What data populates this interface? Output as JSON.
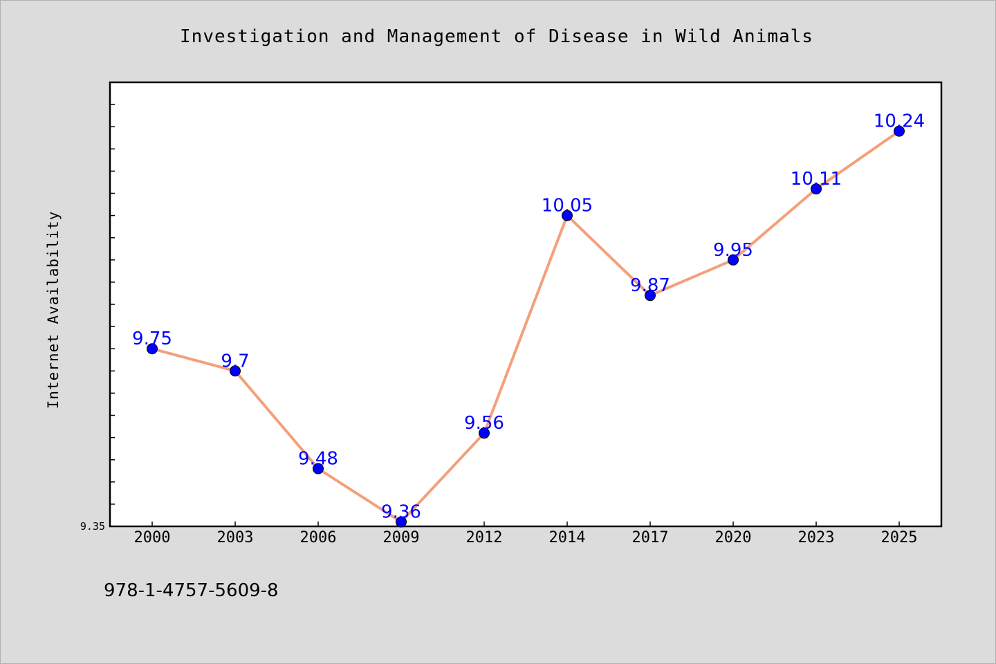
{
  "chart_data": {
    "type": "line",
    "title": "Investigation and Management of Disease in Wild Animals",
    "xlabel": "",
    "ylabel": "Internet Availability",
    "categories": [
      "2000",
      "2003",
      "2006",
      "2009",
      "2012",
      "2014",
      "2017",
      "2020",
      "2023",
      "2025"
    ],
    "series": [
      {
        "values": [
          9.75,
          9.7,
          9.48,
          9.36,
          9.56,
          10.05,
          9.87,
          9.95,
          10.11,
          10.24
        ],
        "labels": [
          "9.75",
          "9.7",
          "9.48",
          "9.36",
          "9.56",
          "10.05",
          "9.87",
          "9.95",
          "10.11",
          "10.24"
        ]
      }
    ],
    "ylim": [
      9.35,
      10.35
    ],
    "y_tick_labels": [
      "9.35"
    ],
    "grid": false,
    "legend": "none",
    "line_color": "#f4a07a",
    "marker_color": "#0000ff",
    "label_color": "#0000ff"
  },
  "footer": {
    "isbn": "978-1-4757-5609-8"
  }
}
